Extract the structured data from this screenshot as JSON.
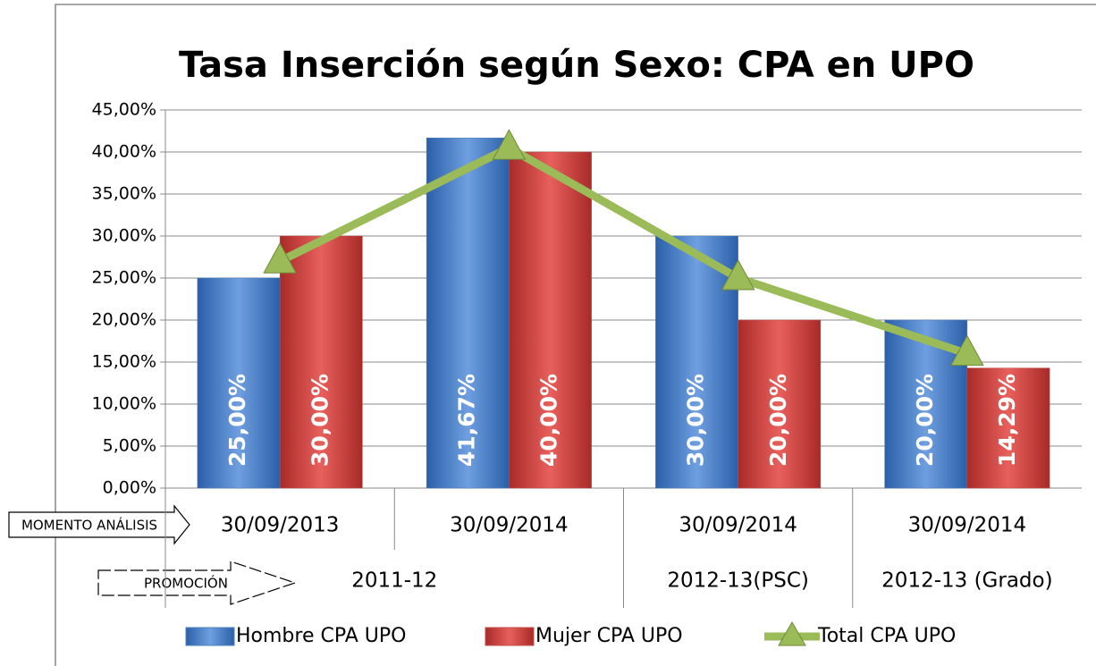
{
  "chart_data": {
    "type": "bar",
    "title": "Tasa Inserción según Sexo: CPA en UPO",
    "categories": [
      "30/09/2013",
      "30/09/2014",
      "30/09/2014",
      "30/09/2014"
    ],
    "groups": [
      {
        "label": "2011-12",
        "count": 2
      },
      {
        "label": "2012-13(PSC)",
        "count": 1
      },
      {
        "label": "2012-13 (Grado)",
        "count": 1
      }
    ],
    "annotations": [
      "MOMENTO ANÁLISIS",
      "PROMOCIÓN"
    ],
    "series": [
      {
        "name": "Hombre CPA UPO",
        "type": "bar",
        "color": "#4f81bd",
        "values": [
          25,
          41.67,
          30,
          20
        ],
        "value_labels": [
          "25,00%",
          "41,67%",
          "30,00%",
          "20,00%"
        ]
      },
      {
        "name": "Mujer CPA  UPO",
        "type": "bar",
        "color": "#c0504d",
        "values": [
          30,
          40,
          20,
          14.29
        ],
        "value_labels": [
          "30,00%",
          "40,00%",
          "20,00%",
          "14,29%"
        ]
      },
      {
        "name": "Total CPA UPO",
        "type": "line",
        "color": "#9bbb59",
        "values": [
          27,
          40.5,
          25,
          16
        ]
      }
    ],
    "ylim": [
      0,
      45
    ],
    "yticks": [
      {
        "value": 0,
        "label": "0,00%"
      },
      {
        "value": 5,
        "label": "5,00%"
      },
      {
        "value": 10,
        "label": "10,00%"
      },
      {
        "value": 15,
        "label": "15,00%"
      },
      {
        "value": 20,
        "label": "20,00%"
      },
      {
        "value": 25,
        "label": "25,00%"
      },
      {
        "value": 30,
        "label": "30,00%"
      },
      {
        "value": 35,
        "label": "35,00%"
      },
      {
        "value": 40,
        "label": "40,00%"
      },
      {
        "value": 45,
        "label": "45,00%"
      }
    ],
    "grid": true,
    "legend": "bottom"
  }
}
